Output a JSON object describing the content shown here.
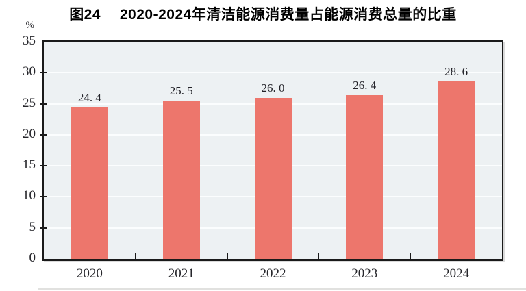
{
  "chart_title": "图24　 2020-2024年清洁能源消费量占能源消费总量的比重",
  "chart_data": {
    "type": "bar",
    "title": "图24　 2020-2024年清洁能源消费量占能源消费总量的比重",
    "unit_label": "%",
    "categories": [
      "2020",
      "2021",
      "2022",
      "2023",
      "2024"
    ],
    "values": [
      24.4,
      25.5,
      26.0,
      26.4,
      28.6
    ],
    "value_labels": [
      "24. 4",
      "25. 5",
      "26. 0",
      "26. 4",
      "28. 6"
    ],
    "xlabel": "",
    "ylabel": "%",
    "ylim": [
      0,
      35
    ],
    "ytick_step": 5,
    "yticks": [
      0,
      5,
      10,
      15,
      20,
      25,
      30,
      35
    ],
    "grid": "horizontal",
    "legend": "none",
    "bar_color": "#ed766c",
    "plot_background": "#edf1f3",
    "gridline_color": "#fbfdfe",
    "frame_color": "#1a1a1a"
  }
}
